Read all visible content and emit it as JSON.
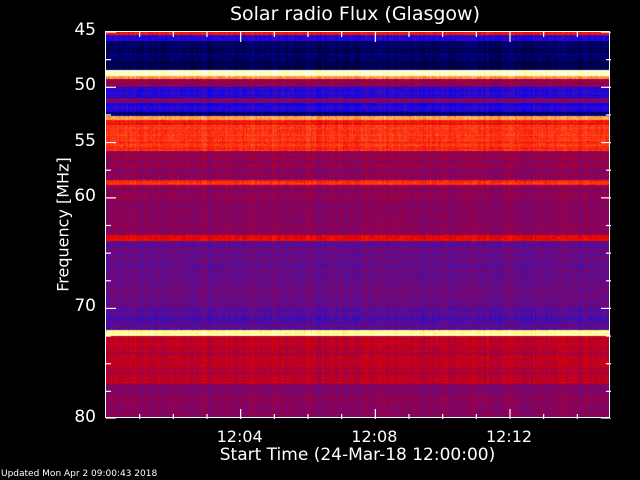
{
  "chart_data": {
    "type": "heatmap",
    "title": "Solar radio Flux (Glasgow)",
    "xlabel": "Start Time (24-Mar-18 12:00:00)",
    "ylabel": "Frequency [MHz]",
    "x_unit": "minutes after 12:00",
    "xlim": [
      0,
      15
    ],
    "ylim": [
      45,
      80
    ],
    "y_inverted": true,
    "x_ticks": [
      "12:04",
      "12:08",
      "12:12"
    ],
    "x_tick_values": [
      4,
      8,
      12
    ],
    "x_minor_step": 1,
    "y_ticks": [
      "45",
      "50",
      "55",
      "60",
      "70",
      "80"
    ],
    "y_tick_values": [
      45,
      50,
      55,
      60,
      70,
      80
    ],
    "y_minor_step": 2.5,
    "colormap": [
      "#000000",
      "#000060",
      "#0000ff",
      "#5010a0",
      "#900050",
      "#e00000",
      "#ff3010",
      "#ff9040",
      "#ffff80",
      "#ffffff"
    ],
    "frequency_bands": [
      {
        "from": 45.0,
        "to": 45.3,
        "level": 0.6
      },
      {
        "from": 45.3,
        "to": 45.8,
        "level": 0.28
      },
      {
        "from": 45.8,
        "to": 48.5,
        "level": 0.1
      },
      {
        "from": 48.5,
        "to": 49.0,
        "level": 0.95
      },
      {
        "from": 49.0,
        "to": 49.3,
        "level": 0.78
      },
      {
        "from": 49.3,
        "to": 50.0,
        "level": 0.45
      },
      {
        "from": 50.0,
        "to": 51.0,
        "level": 0.27
      },
      {
        "from": 51.0,
        "to": 51.5,
        "level": 0.42
      },
      {
        "from": 51.5,
        "to": 52.3,
        "level": 0.27
      },
      {
        "from": 52.3,
        "to": 52.6,
        "level": 0.12
      },
      {
        "from": 52.6,
        "to": 53.0,
        "level": 0.8
      },
      {
        "from": 53.0,
        "to": 53.5,
        "level": 0.6
      },
      {
        "from": 53.5,
        "to": 55.8,
        "level": 0.66
      },
      {
        "from": 55.8,
        "to": 58.5,
        "level": 0.44
      },
      {
        "from": 58.5,
        "to": 58.9,
        "level": 0.65
      },
      {
        "from": 58.9,
        "to": 63.5,
        "level": 0.43
      },
      {
        "from": 63.5,
        "to": 64.0,
        "level": 0.58
      },
      {
        "from": 64.0,
        "to": 70.0,
        "level": 0.37
      },
      {
        "from": 70.0,
        "to": 72.1,
        "level": 0.34
      },
      {
        "from": 72.1,
        "to": 72.6,
        "level": 0.9
      },
      {
        "from": 72.6,
        "to": 77.0,
        "level": 0.5
      },
      {
        "from": 77.0,
        "to": 80.0,
        "level": 0.42
      }
    ]
  },
  "footer": {
    "updated": "Updated Mon Apr  2 09:00:43 2018"
  }
}
